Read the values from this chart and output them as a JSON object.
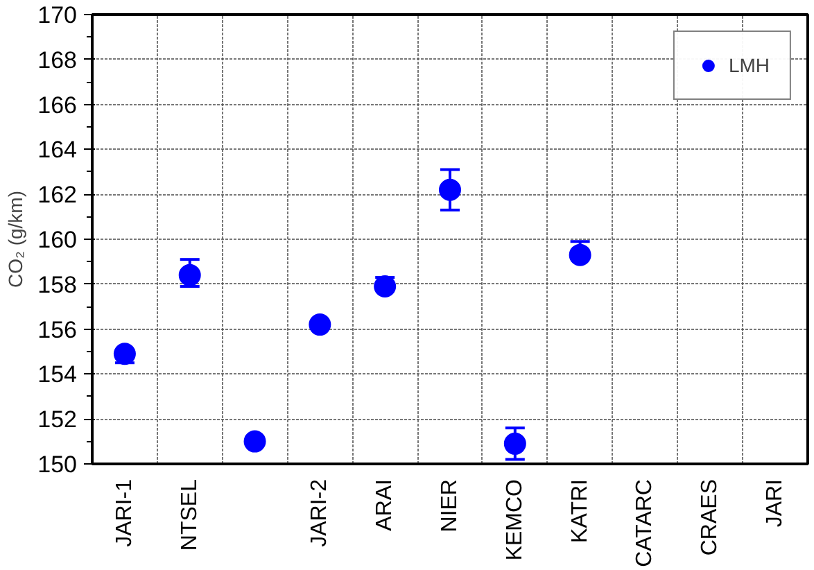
{
  "chart_data": {
    "type": "scatter",
    "ylabel": "CO₂ (g/km)",
    "categories": [
      "JARI-1",
      "NTSEL",
      null,
      "JARI-2",
      "ARAI",
      "NIER",
      "KEMCO",
      "KATRI",
      "CATARC",
      "CRAES",
      "JARI"
    ],
    "series": [
      {
        "name": "LMH",
        "color": "#0000ff",
        "values": [
          154.9,
          158.4,
          151.0,
          156.2,
          157.9,
          162.2,
          150.9,
          159.3,
          null,
          null,
          null
        ],
        "errors": [
          [
            154.5,
            154.9
          ],
          [
            157.9,
            159.1
          ],
          null,
          null,
          [
            157.9,
            158.3
          ],
          [
            161.3,
            163.1
          ],
          [
            150.2,
            151.6
          ],
          [
            159.3,
            159.9
          ],
          null,
          null,
          null
        ]
      }
    ],
    "ylim": [
      150,
      170
    ],
    "yticks": [
      150,
      152,
      154,
      156,
      158,
      160,
      162,
      164,
      166,
      168,
      170
    ],
    "grid": true,
    "legend": "top right",
    "marker": "circle"
  }
}
